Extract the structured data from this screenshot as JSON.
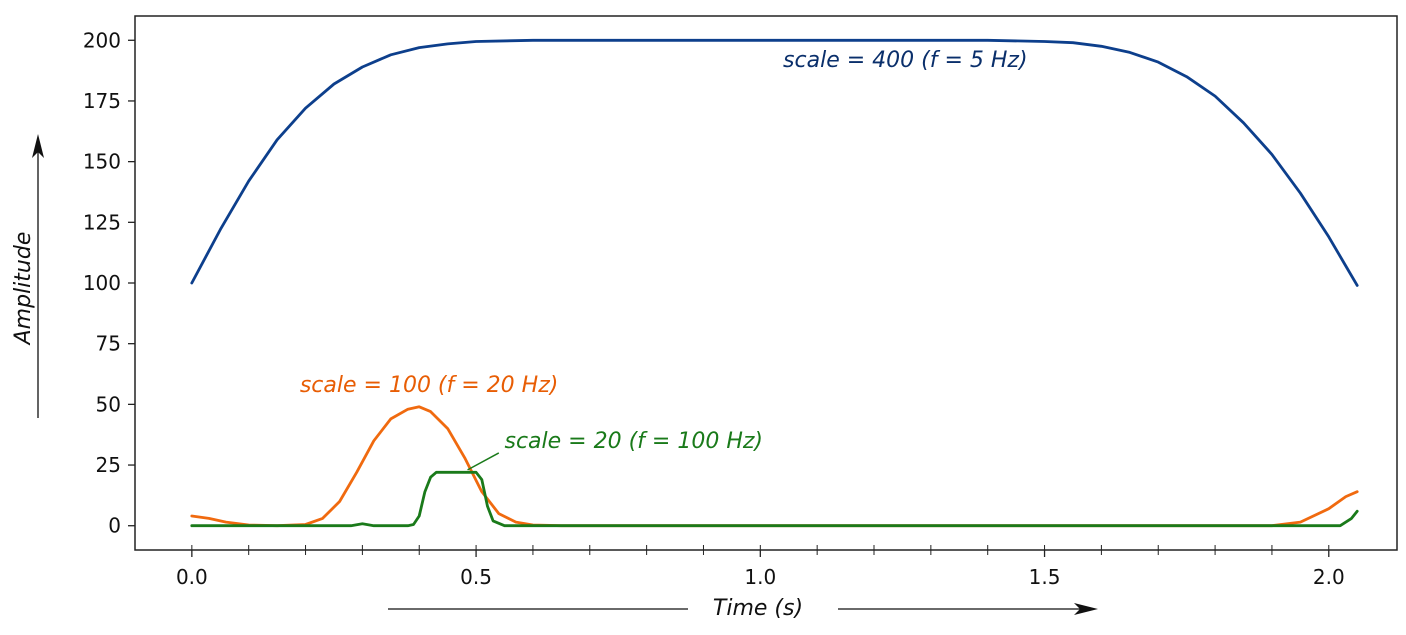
{
  "chart_data": {
    "type": "line",
    "title": "",
    "xlabel": "Time (s)",
    "ylabel": "Amplitude",
    "xlim": [
      -0.1,
      2.12
    ],
    "ylim": [
      -10,
      210
    ],
    "grid": false,
    "x_ticks": [
      0.0,
      0.5,
      1.0,
      1.5,
      2.0
    ],
    "x_tick_labels": [
      "0.0",
      "0.5",
      "1.0",
      "1.5",
      "2.0"
    ],
    "y_ticks": [
      0,
      25,
      50,
      75,
      100,
      125,
      150,
      175,
      200
    ],
    "y_tick_labels": [
      "0",
      "25",
      "50",
      "75",
      "100",
      "125",
      "150",
      "175",
      "200"
    ],
    "series": [
      {
        "name": "scale = 400 (f = 5 Hz)",
        "color": "#0d3f8c",
        "label": "scale = 400  (f = 5 Hz)",
        "label_color": "#0a2f6b",
        "label_at": [
          1.04,
          189
        ],
        "x": [
          0.0,
          0.05,
          0.1,
          0.15,
          0.2,
          0.25,
          0.3,
          0.35,
          0.4,
          0.45,
          0.5,
          0.6,
          0.7,
          0.8,
          0.9,
          1.0,
          1.1,
          1.2,
          1.3,
          1.4,
          1.5,
          1.55,
          1.6,
          1.65,
          1.7,
          1.75,
          1.8,
          1.85,
          1.9,
          1.95,
          2.0,
          2.03,
          2.05
        ],
        "y": [
          100,
          122,
          142,
          159,
          172,
          182,
          189,
          194,
          197,
          198.5,
          199.5,
          200,
          200,
          200,
          200,
          200,
          200,
          200,
          200,
          200,
          199.5,
          199,
          197.5,
          195,
          191,
          185,
          177,
          166,
          153,
          137,
          119,
          107,
          99
        ]
      },
      {
        "name": "scale = 100 (f = 20 Hz)",
        "color": "#f06a0f",
        "label": "scale = 100  (f = 20 Hz)",
        "label_color": "#e85d04",
        "label_at": [
          0.19,
          55
        ],
        "x": [
          0.0,
          0.03,
          0.06,
          0.1,
          0.15,
          0.2,
          0.23,
          0.26,
          0.29,
          0.32,
          0.35,
          0.38,
          0.4,
          0.42,
          0.45,
          0.48,
          0.51,
          0.54,
          0.57,
          0.6,
          0.65,
          1.0,
          1.5,
          1.9,
          1.95,
          2.0,
          2.03,
          2.05
        ],
        "y": [
          4,
          3,
          1.5,
          0.3,
          0,
          0.5,
          3,
          10,
          22,
          35,
          44,
          48,
          49,
          47,
          40,
          28,
          14,
          5,
          1.5,
          0.3,
          0,
          0,
          0,
          0,
          1.5,
          7,
          12,
          14
        ]
      },
      {
        "name": "scale = 20 (f = 100 Hz)",
        "color": "#1a7a1a",
        "label": "scale = 20  (f = 100 Hz)",
        "label_color": "#1a7a1a",
        "label_at": [
          0.55,
          32
        ],
        "pointer_from": [
          0.54,
          30
        ],
        "pointer_to": [
          0.485,
          23
        ],
        "x": [
          0.0,
          0.28,
          0.3,
          0.32,
          0.38,
          0.39,
          0.4,
          0.41,
          0.42,
          0.43,
          0.44,
          0.5,
          0.51,
          0.52,
          0.53,
          0.55,
          2.02,
          2.04,
          2.05
        ],
        "y": [
          0,
          0,
          0.8,
          0,
          0,
          0.5,
          4,
          14,
          20,
          22,
          22,
          22,
          19,
          8,
          2,
          0,
          0,
          3,
          6
        ]
      }
    ]
  }
}
